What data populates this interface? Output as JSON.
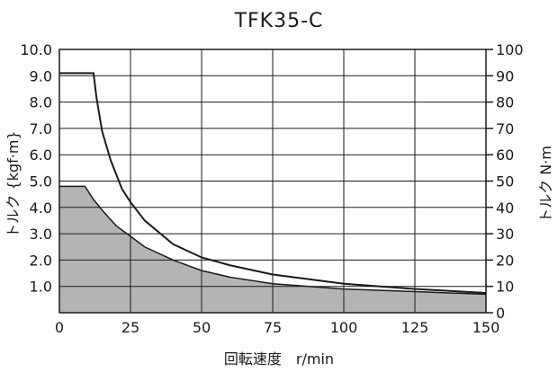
{
  "chart_data": {
    "type": "area",
    "title": "TFK35-C",
    "xlabel": "回転速度　r/min",
    "ylabel_left": "トルク {kgf·m}",
    "ylabel_right": "トルク N·m",
    "xlim": [
      0,
      150
    ],
    "ylim_left": [
      0,
      10
    ],
    "ylim_right": [
      0,
      100
    ],
    "x_ticks": [
      "0",
      "25",
      "50",
      "75",
      "100",
      "125",
      "150"
    ],
    "y_ticks_left": [
      "1.0",
      "2.0",
      "3.0",
      "4.0",
      "5.0",
      "6.0",
      "7.0",
      "8.0",
      "9.0",
      "10.0"
    ],
    "y_ticks_right": [
      "0",
      "10",
      "20",
      "30",
      "40",
      "50",
      "60",
      "70",
      "80",
      "90",
      "100"
    ],
    "grid": true,
    "series": [
      {
        "style": "line",
        "x": [
          0,
          12,
          13,
          15,
          18,
          22,
          25,
          30,
          40,
          50,
          60,
          75,
          100,
          125,
          150
        ],
        "y": [
          9.1,
          9.1,
          8.2,
          6.9,
          5.8,
          4.7,
          4.2,
          3.5,
          2.6,
          2.1,
          1.8,
          1.45,
          1.1,
          0.9,
          0.75
        ]
      },
      {
        "style": "filled",
        "color": "#b4b4b4",
        "x": [
          0,
          9,
          12,
          15,
          20,
          25,
          30,
          40,
          50,
          60,
          75,
          100,
          125,
          150
        ],
        "y": [
          4.8,
          4.8,
          4.3,
          3.9,
          3.3,
          2.9,
          2.5,
          2.0,
          1.6,
          1.35,
          1.1,
          0.9,
          0.8,
          0.7
        ]
      }
    ]
  }
}
